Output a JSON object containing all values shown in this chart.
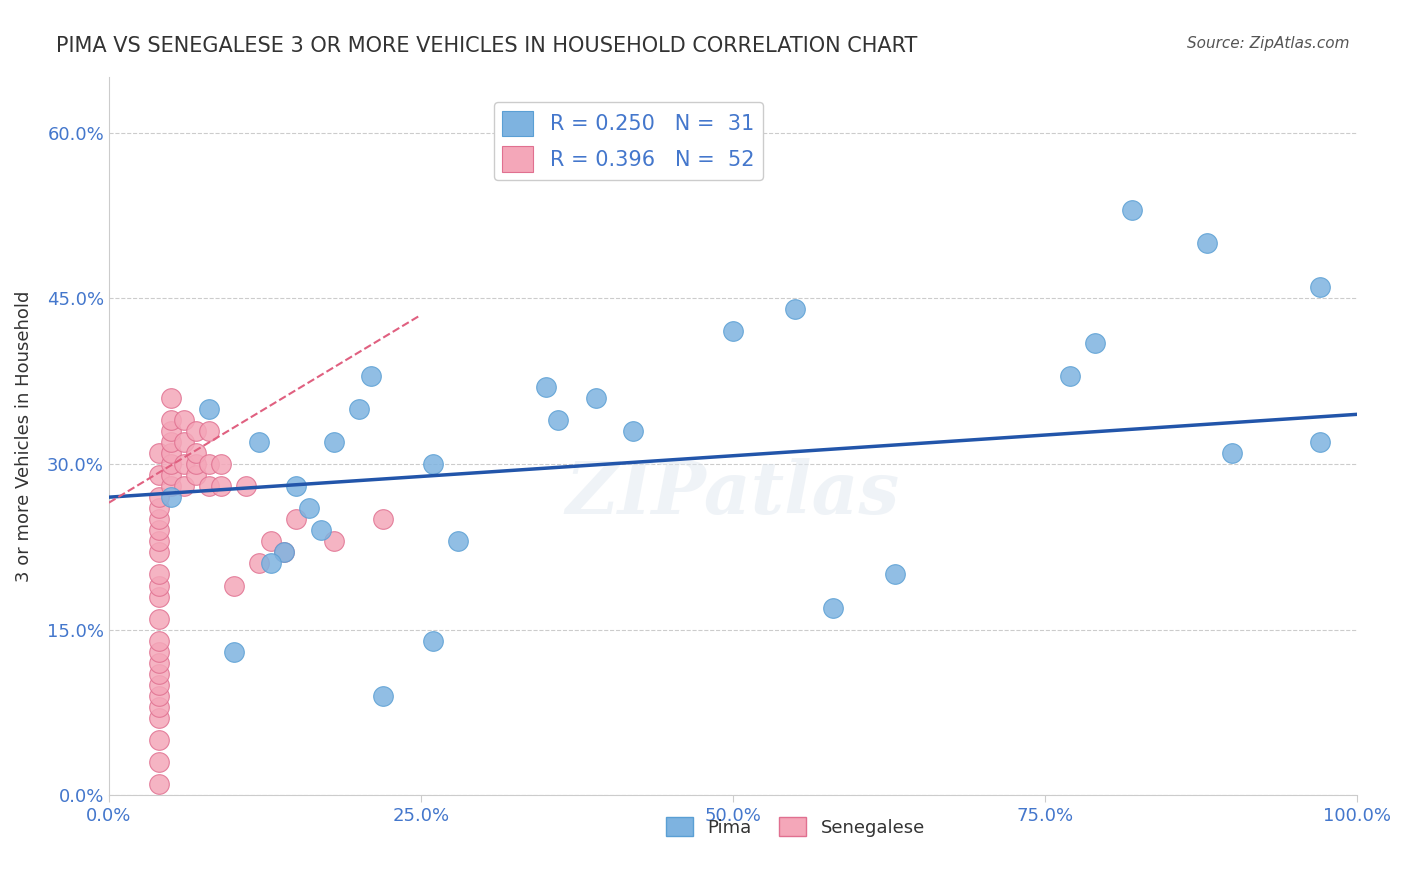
{
  "title": "PIMA VS SENEGALESE 3 OR MORE VEHICLES IN HOUSEHOLD CORRELATION CHART",
  "source": "Source: ZipAtlas.com",
  "ylabel": "3 or more Vehicles in Household",
  "xlabel": "",
  "xlim": [
    0.0,
    1.0
  ],
  "ylim": [
    0.0,
    0.65
  ],
  "xticks": [
    0.0,
    0.25,
    0.5,
    0.75,
    1.0
  ],
  "xtick_labels": [
    "0.0%",
    "25.0%",
    "50.0%",
    "75.0%",
    "100.0%"
  ],
  "yticks": [
    0.0,
    0.15,
    0.3,
    0.45,
    0.6
  ],
  "ytick_labels": [
    "0.0%",
    "15.0%",
    "30.0%",
    "45.0%",
    "60.0%"
  ],
  "grid_color": "#cccccc",
  "background_color": "#ffffff",
  "watermark": "ZIPatlas",
  "pima_color": "#7eb3e0",
  "pima_edge_color": "#5a9fd4",
  "senegalese_color": "#f4a7b9",
  "senegalese_edge_color": "#e07090",
  "pima_R": 0.25,
  "pima_N": 31,
  "senegalese_R": 0.396,
  "senegalese_N": 52,
  "legend_label1": "R = 0.250   N =  31",
  "legend_label2": "R = 0.396   N =  52",
  "pima_x": [
    0.97,
    0.97,
    0.9,
    0.88,
    0.82,
    0.79,
    0.77,
    0.63,
    0.58,
    0.55,
    0.5,
    0.42,
    0.39,
    0.36,
    0.35,
    0.28,
    0.26,
    0.26,
    0.22,
    0.21,
    0.2,
    0.18,
    0.17,
    0.16,
    0.15,
    0.14,
    0.13,
    0.12,
    0.1,
    0.08,
    0.05
  ],
  "pima_y": [
    0.46,
    0.32,
    0.31,
    0.5,
    0.53,
    0.41,
    0.38,
    0.2,
    0.17,
    0.44,
    0.42,
    0.33,
    0.36,
    0.34,
    0.37,
    0.23,
    0.14,
    0.3,
    0.09,
    0.38,
    0.35,
    0.32,
    0.24,
    0.26,
    0.28,
    0.22,
    0.21,
    0.32,
    0.13,
    0.35,
    0.27
  ],
  "senegalese_x": [
    0.04,
    0.04,
    0.04,
    0.04,
    0.04,
    0.04,
    0.04,
    0.04,
    0.04,
    0.04,
    0.04,
    0.04,
    0.04,
    0.04,
    0.04,
    0.04,
    0.04,
    0.04,
    0.04,
    0.04,
    0.04,
    0.04,
    0.04,
    0.05,
    0.05,
    0.05,
    0.05,
    0.05,
    0.05,
    0.05,
    0.05,
    0.06,
    0.06,
    0.06,
    0.06,
    0.07,
    0.07,
    0.07,
    0.07,
    0.08,
    0.08,
    0.08,
    0.09,
    0.09,
    0.1,
    0.11,
    0.12,
    0.13,
    0.14,
    0.15,
    0.18,
    0.22
  ],
  "senegalese_y": [
    0.01,
    0.03,
    0.05,
    0.07,
    0.08,
    0.09,
    0.1,
    0.11,
    0.12,
    0.13,
    0.14,
    0.16,
    0.18,
    0.19,
    0.2,
    0.22,
    0.23,
    0.24,
    0.25,
    0.26,
    0.27,
    0.29,
    0.31,
    0.28,
    0.29,
    0.3,
    0.31,
    0.32,
    0.33,
    0.34,
    0.36,
    0.28,
    0.3,
    0.32,
    0.34,
    0.29,
    0.3,
    0.31,
    0.33,
    0.28,
    0.3,
    0.33,
    0.28,
    0.3,
    0.19,
    0.28,
    0.21,
    0.23,
    0.22,
    0.25,
    0.23,
    0.25
  ],
  "pima_trend_x": [
    0.0,
    1.0
  ],
  "pima_trend_y_start": 0.27,
  "pima_trend_y_end": 0.345,
  "senegalese_trend_x": [
    0.0,
    0.25
  ],
  "senegalese_trend_y_start": 0.265,
  "senegalese_trend_y_end": 0.435,
  "trend_blue_color": "#2255aa",
  "trend_pink_color": "#e06080"
}
